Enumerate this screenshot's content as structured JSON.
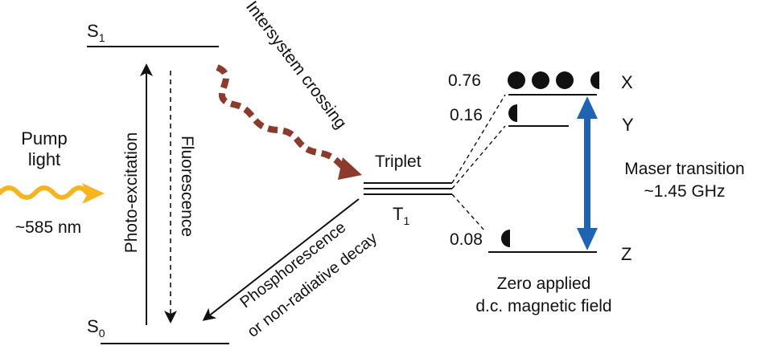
{
  "colors": {
    "ink": "#111111",
    "pump_wave": "#f6b51e",
    "isc_arrow": "#8b3a2c",
    "maser_arrow": "#1f63b3"
  },
  "labels": {
    "s1": "S",
    "s1_sub": "1",
    "s0": "S",
    "s0_sub": "0",
    "t1": "T",
    "t1_sub": "1",
    "triplet": "Triplet",
    "pump_line1": "Pump",
    "pump_line2": "light",
    "wavelength": "~585 nm",
    "photo_excitation": "Photo-excitation",
    "fluorescence": "Fluorescence",
    "intersystem_crossing": "Intersystem crossing",
    "phosphorescence": "Phosphorescence",
    "non_radiative": "or non-radiative decay",
    "maser_line1": "Maser transition",
    "maser_line2": "~1.45 GHz",
    "field_line1": "Zero applied",
    "field_line2": "d.c. magnetic field"
  },
  "sublevels": [
    {
      "name": "X",
      "population": "0.76",
      "dots": 3.5
    },
    {
      "name": "Y",
      "population": "0.16",
      "dots": 0.5
    },
    {
      "name": "Z",
      "population": "0.08",
      "dots": 0.5
    }
  ],
  "icons": {
    "pump_wave": "wavy-arrow-icon",
    "isc_arrow": "dashed-wavy-arrow-icon",
    "maser_arrow": "double-headed-arrow-icon",
    "population_dot": "filled-circle-icon",
    "population_half_dot": "half-circle-icon"
  }
}
